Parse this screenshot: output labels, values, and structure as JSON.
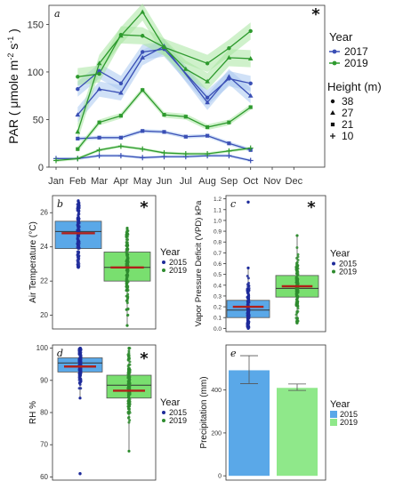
{
  "chart_data": [
    {
      "type": "line",
      "panel": "a",
      "significance": "*",
      "ylabel": "PAR ( μmole m⁻² s⁻¹ )",
      "xlabel": "",
      "categories": [
        "Jan",
        "Feb",
        "Mar",
        "Apr",
        "May",
        "Jun",
        "Jul",
        "Aug",
        "Sep",
        "Oct",
        "Nov",
        "Dec"
      ],
      "ylim": [
        0,
        170
      ],
      "yticks": [
        0,
        50,
        100,
        150
      ],
      "legend_title": "Year",
      "legend_entries": [
        "2017",
        "2019"
      ],
      "height_legend_title": "Height (m)",
      "height_entries": [
        {
          "label": "38",
          "marker": "circle"
        },
        {
          "label": "27",
          "marker": "triangle"
        },
        {
          "label": "21",
          "marker": "square"
        },
        {
          "label": "10",
          "marker": "plus"
        }
      ],
      "colors": {
        "2017": "#3a4fb5",
        "2019": "#2e9a2e",
        "band2017": "#a9c8f0",
        "band2019": "#a8e6a0"
      },
      "series": [
        {
          "year": "2017",
          "height": "38",
          "marker": "circle",
          "x": [
            2,
            3,
            4,
            5,
            6,
            8,
            9,
            10
          ],
          "y": [
            82,
            101,
            88,
            121,
            124,
            73,
            93,
            88
          ],
          "band": 8
        },
        {
          "year": "2017",
          "height": "27",
          "marker": "triangle",
          "x": [
            2,
            3,
            4,
            5,
            6,
            8,
            9,
            10
          ],
          "y": [
            55,
            82,
            78,
            115,
            127,
            68,
            95,
            75
          ],
          "band": 8
        },
        {
          "year": "2017",
          "height": "21",
          "marker": "square",
          "x": [
            2,
            3,
            4,
            5,
            6,
            7,
            8,
            9,
            10
          ],
          "y": [
            30,
            31,
            31,
            38,
            37,
            32,
            33,
            25,
            18
          ],
          "band": 2
        },
        {
          "year": "2017",
          "height": "10",
          "marker": "plus",
          "x": [
            1,
            2,
            3,
            4,
            5,
            6,
            7,
            8,
            9,
            10
          ],
          "y": [
            9,
            9,
            12,
            12,
            10,
            11,
            11,
            12,
            12,
            7
          ],
          "band": 1.5
        },
        {
          "year": "2019",
          "height": "38",
          "marker": "circle",
          "x": [
            2,
            3,
            4,
            5,
            6,
            8,
            9,
            10
          ],
          "y": [
            95,
            98,
            139,
            138,
            126,
            109,
            125,
            143
          ],
          "band": 9
        },
        {
          "year": "2019",
          "height": "27",
          "marker": "triangle",
          "x": [
            2,
            3,
            4,
            5,
            6,
            7,
            8,
            9,
            10
          ],
          "y": [
            37,
            109,
            138,
            163,
            126,
            103,
            90,
            115,
            114
          ],
          "band": 9
        },
        {
          "year": "2019",
          "height": "21",
          "marker": "square",
          "x": [
            2,
            3,
            4,
            5,
            6,
            7,
            8,
            9,
            10
          ],
          "y": [
            19,
            47,
            54,
            81,
            55,
            53,
            42,
            47,
            63
          ],
          "band": 3
        },
        {
          "year": "2019",
          "height": "10",
          "marker": "plus",
          "x": [
            1,
            2,
            3,
            4,
            5,
            6,
            7,
            8,
            9,
            10
          ],
          "y": [
            7,
            9,
            18,
            22,
            19,
            15,
            14,
            14,
            17,
            20
          ],
          "band": 1.5
        }
      ]
    },
    {
      "type": "box",
      "panel": "b",
      "significance": "*",
      "ylabel": "Air Temperature (°C)",
      "ylim": [
        19.2,
        27.0
      ],
      "yticks": [
        20,
        22,
        24,
        26
      ],
      "legend_title": "Year",
      "groups": [
        {
          "name": "2015",
          "color": "#5aa8e8",
          "point_color": "#1d2a9a",
          "min": 22.8,
          "q1": 23.9,
          "median": 24.9,
          "q3": 25.5,
          "max": 26.7,
          "mean": 24.8
        },
        {
          "name": "2019",
          "color": "#79df6f",
          "point_color": "#2e8b2e",
          "min": 19.4,
          "q1": 22.0,
          "median": 22.8,
          "q3": 23.7,
          "max": 25.1,
          "mean": 22.8
        }
      ]
    },
    {
      "type": "box",
      "panel": "c",
      "significance": "*",
      "ylabel": "Vapor Pressure Deficit (VPD) kPa",
      "ylim": [
        -0.03,
        1.23
      ],
      "yticks": [
        0.0,
        0.1,
        0.2,
        0.3,
        0.4,
        0.5,
        0.6,
        0.7,
        0.8,
        0.9,
        1.0,
        1.1,
        1.2
      ],
      "tick_labels": [
        "0.0",
        "0.1",
        "0.2",
        "0.3",
        "0.4",
        "0.5",
        "0.6",
        "0.7",
        "0.8",
        "0.9",
        "1.0",
        "1.1",
        "1.2"
      ],
      "legend_title": "Year",
      "groups": [
        {
          "name": "2015",
          "color": "#5aa8e8",
          "point_color": "#1d2a9a",
          "min": 0.0,
          "q1": 0.1,
          "median": 0.17,
          "q3": 0.26,
          "max": 0.56,
          "mean": 0.2,
          "outlier": 1.17
        },
        {
          "name": "2019",
          "color": "#79df6f",
          "point_color": "#2e8b2e",
          "min": 0.05,
          "q1": 0.29,
          "median": 0.37,
          "q3": 0.49,
          "max": 0.86,
          "mean": 0.39
        }
      ]
    },
    {
      "type": "box",
      "panel": "d",
      "significance": "*",
      "ylabel": "RH %",
      "ylim": [
        59,
        101
      ],
      "yticks": [
        60,
        70,
        80,
        90,
        100
      ],
      "legend_title": "Year",
      "groups": [
        {
          "name": "2015",
          "color": "#5aa8e8",
          "point_color": "#1d2a9a",
          "min": 84.5,
          "q1": 92.6,
          "median": 95.4,
          "q3": 97.0,
          "max": 100.0,
          "mean": 94.3,
          "outlier": 61.0
        },
        {
          "name": "2019",
          "color": "#79df6f",
          "point_color": "#2e8b2e",
          "min": 68.0,
          "q1": 84.5,
          "median": 88.5,
          "q3": 91.6,
          "max": 100.0,
          "mean": 86.8
        }
      ]
    },
    {
      "type": "bar",
      "panel": "e",
      "ylabel": "Precipitation (mm)",
      "categories": [
        "2015",
        "2019"
      ],
      "values": [
        492,
        410
      ],
      "errors": [
        [
          430,
          560
        ],
        [
          398,
          428
        ]
      ],
      "ylim": [
        -20,
        610
      ],
      "yticks": [
        0,
        200,
        400
      ],
      "legend_title": "Year",
      "colors": [
        "#5aa8e8",
        "#8fe88a"
      ]
    }
  ]
}
